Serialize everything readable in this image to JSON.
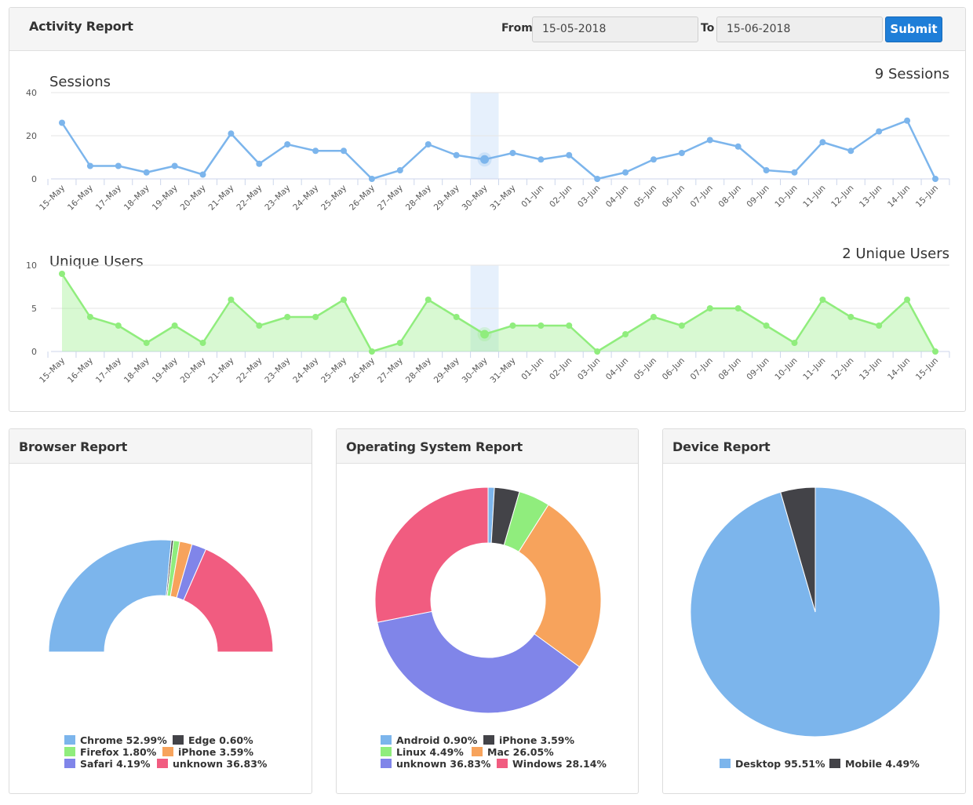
{
  "activity": {
    "title": "Activity Report",
    "from_label": "From",
    "from_value": "15-05-2018",
    "to_label": "To",
    "to_value": "15-06-2018",
    "submit_label": "Submit"
  },
  "browser": {
    "title": "Browser Report"
  },
  "os": {
    "title": "Operating System Report"
  },
  "device": {
    "title": "Device Report"
  },
  "colors": {
    "blue": "#7cb5ec",
    "dark": "#434348",
    "green": "#90ed7d",
    "orange": "#f7a35c",
    "purple": "#8085e9",
    "pink": "#f15c80",
    "accent": "#1e7ed8"
  },
  "chart_data": [
    {
      "type": "line",
      "title": "Sessions",
      "summary": "9 Sessions",
      "x": [
        "15–May",
        "16–May",
        "17–May",
        "18–May",
        "19–May",
        "20–May",
        "21–May",
        "22–May",
        "23–May",
        "24–May",
        "25–May",
        "26–May",
        "27–May",
        "28–May",
        "29–May",
        "30–May",
        "31–May",
        "01–Jun",
        "02–Jun",
        "03–Jun",
        "04–Jun",
        "05–Jun",
        "06–Jun",
        "07–Jun",
        "08–Jun",
        "09–Jun",
        "10–Jun",
        "11–Jun",
        "12–Jun",
        "13–Jun",
        "14–Jun",
        "15–Jun"
      ],
      "series": [
        {
          "values": [
            26,
            6,
            6,
            3,
            6,
            2,
            21,
            7,
            16,
            13,
            13,
            0,
            4,
            16,
            11,
            9,
            12,
            9,
            11,
            0,
            3,
            9,
            12,
            18,
            15,
            4,
            3,
            17,
            13,
            22,
            27,
            0
          ]
        }
      ],
      "yticks": [
        0,
        20,
        40
      ],
      "ylim": [
        0,
        40
      ],
      "highlight": "30–May",
      "color": "#7cb5ec",
      "grid": true
    },
    {
      "type": "area",
      "title": "Unique Users",
      "summary": "2 Unique Users",
      "x": [
        "15–May",
        "16–May",
        "17–May",
        "18–May",
        "19–May",
        "20–May",
        "21–May",
        "22–May",
        "23–May",
        "24–May",
        "25–May",
        "26–May",
        "27–May",
        "28–May",
        "29–May",
        "30–May",
        "31–May",
        "01–Jun",
        "02–Jun",
        "03–Jun",
        "04–Jun",
        "05–Jun",
        "06–Jun",
        "07–Jun",
        "08–Jun",
        "09–Jun",
        "10–Jun",
        "11–Jun",
        "12–Jun",
        "13–Jun",
        "14–Jun",
        "15–Jun"
      ],
      "series": [
        {
          "values": [
            9,
            4,
            3,
            1,
            3,
            1,
            6,
            3,
            4,
            4,
            6,
            0,
            1,
            6,
            4,
            2,
            3,
            3,
            3,
            0,
            2,
            4,
            3,
            5,
            5,
            3,
            1,
            6,
            4,
            3,
            6,
            0
          ]
        }
      ],
      "yticks": [
        0,
        5,
        10
      ],
      "ylim": [
        0,
        10
      ],
      "highlight": "30–May",
      "color": "#90ed7d",
      "grid": true
    },
    {
      "type": "pie",
      "title": "Browser Report",
      "variant": "semi-donut",
      "slices": [
        {
          "name": "Chrome",
          "value": 52.99,
          "label": "Chrome 52.99%",
          "color": "#7cb5ec"
        },
        {
          "name": "Edge",
          "value": 0.6,
          "label": "Edge 0.60%",
          "color": "#434348"
        },
        {
          "name": "Firefox",
          "value": 1.8,
          "label": "Firefox 1.80%",
          "color": "#90ed7d"
        },
        {
          "name": "iPhone",
          "value": 3.59,
          "label": "iPhone 3.59%",
          "color": "#f7a35c"
        },
        {
          "name": "Safari",
          "value": 4.19,
          "label": "Safari 4.19%",
          "color": "#8085e9"
        },
        {
          "name": "unknown",
          "value": 36.83,
          "label": "unknown 36.83%",
          "color": "#f15c80"
        }
      ],
      "legend": "bottom"
    },
    {
      "type": "pie",
      "title": "Operating System Report",
      "variant": "donut",
      "slices": [
        {
          "name": "Android",
          "value": 0.9,
          "label": "Android 0.90%",
          "color": "#7cb5ec"
        },
        {
          "name": "iPhone",
          "value": 3.59,
          "label": "iPhone 3.59%",
          "color": "#434348"
        },
        {
          "name": "Linux",
          "value": 4.49,
          "label": "Linux 4.49%",
          "color": "#90ed7d"
        },
        {
          "name": "Mac",
          "value": 26.05,
          "label": "Mac 26.05%",
          "color": "#f7a35c"
        },
        {
          "name": "unknown",
          "value": 36.83,
          "label": "unknown 36.83%",
          "color": "#8085e9"
        },
        {
          "name": "Windows",
          "value": 28.14,
          "label": "Windows 28.14%",
          "color": "#f15c80"
        }
      ],
      "legend": "bottom"
    },
    {
      "type": "pie",
      "title": "Device Report",
      "variant": "pie",
      "slices": [
        {
          "name": "Desktop",
          "value": 95.51,
          "label": "Desktop 95.51%",
          "color": "#7cb5ec"
        },
        {
          "name": "Mobile",
          "value": 4.49,
          "label": "Mobile 4.49%",
          "color": "#434348"
        }
      ],
      "legend": "bottom"
    }
  ]
}
